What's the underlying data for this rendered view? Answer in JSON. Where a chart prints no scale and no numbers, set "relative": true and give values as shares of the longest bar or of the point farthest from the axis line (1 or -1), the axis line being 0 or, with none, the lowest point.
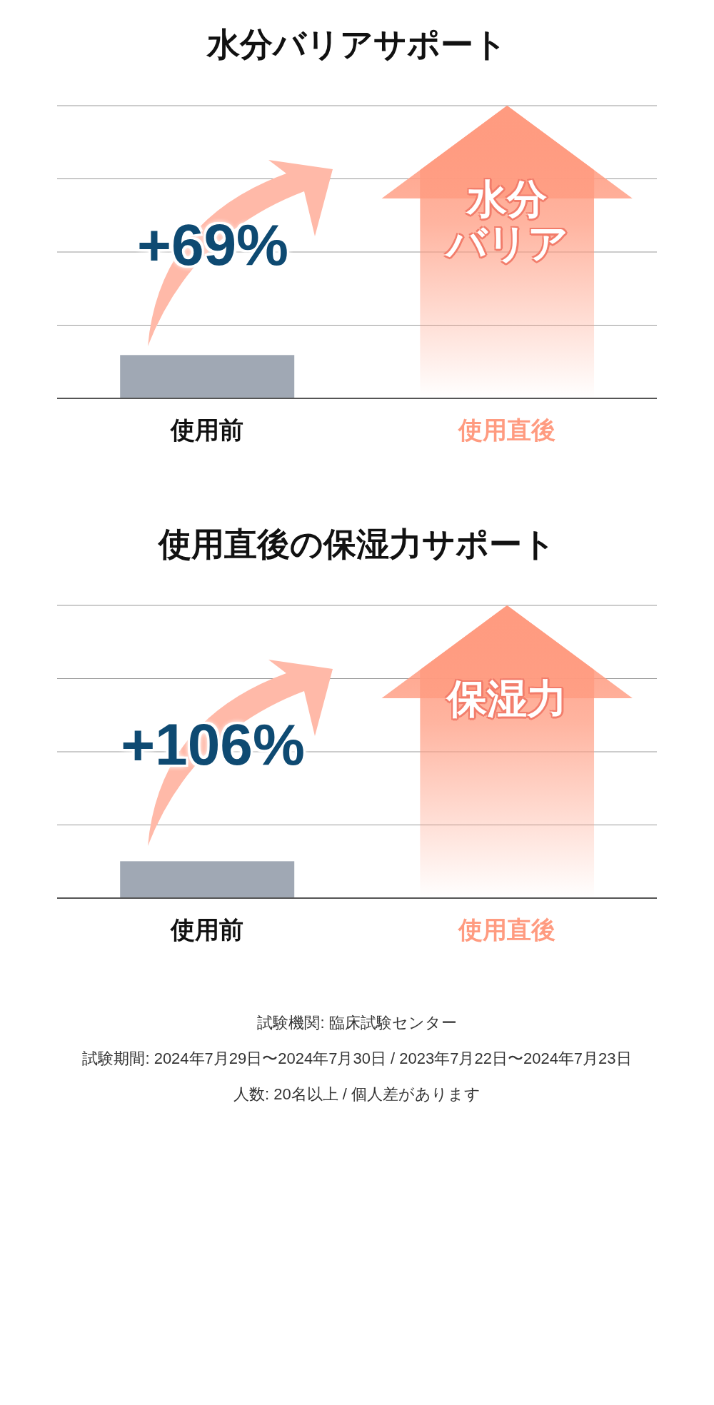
{
  "chart_data": [
    {
      "type": "bar",
      "title": "水分バリアサポート",
      "categories": [
        "使用前",
        "使用直後"
      ],
      "values": [
        0.148,
        1
      ],
      "colors": [
        "#a0a8b4",
        "#ff9b80"
      ],
      "relative": true,
      "grid": true,
      "annotations": [
        "+69%",
        "水分",
        "バリア"
      ]
    },
    {
      "type": "bar",
      "title": "使用直後の保湿力サポート",
      "categories": [
        "使用前",
        "使用直後"
      ],
      "values": [
        0.126,
        1
      ],
      "colors": [
        "#a0a8b4",
        "#ff9b80"
      ],
      "relative": true,
      "grid": true,
      "annotations": [
        "+106%",
        "保湿力"
      ]
    },
    {
      "type": "other",
      "annotations": [
        "試験機関: 臨床試験センター",
        "試験期間: 2024年7月29日〜2024年7月30日 / 2023年7月22日〜2024年7月23日",
        "人数: 20名以上 / 個人差があります"
      ]
    }
  ]
}
